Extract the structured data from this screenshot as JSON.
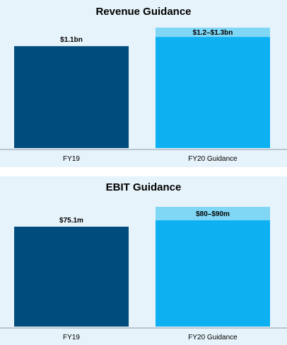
{
  "colors": {
    "background": "#e6f3fa",
    "bar_fy19": "#004c7d",
    "bar_fy20_low": "#0db1f1",
    "bar_fy20_range": "#7fd6f5",
    "axis": "#8c9aa6",
    "text": "#000000"
  },
  "chart_data": [
    {
      "type": "bar",
      "title": "Revenue Guidance",
      "unit": "$bn",
      "categories": [
        "FY19",
        "FY20 Guidance"
      ],
      "bars": [
        {
          "category": "FY19",
          "value": 1.1,
          "label": "$1.1bn"
        },
        {
          "category": "FY20 Guidance",
          "range": [
            1.2,
            1.3
          ],
          "label": "$1.2–$1.3bn"
        }
      ],
      "ylim": [
        0,
        1.3
      ],
      "grid": false
    },
    {
      "type": "bar",
      "title": "EBIT Guidance",
      "unit": "$m",
      "categories": [
        "FY19",
        "FY20 Guidance"
      ],
      "bars": [
        {
          "category": "FY19",
          "value": 75.1,
          "label": "$75.1m"
        },
        {
          "category": "FY20 Guidance",
          "range": [
            80,
            90
          ],
          "label": "$80–$90m"
        }
      ],
      "ylim": [
        0,
        90
      ],
      "grid": false
    }
  ]
}
